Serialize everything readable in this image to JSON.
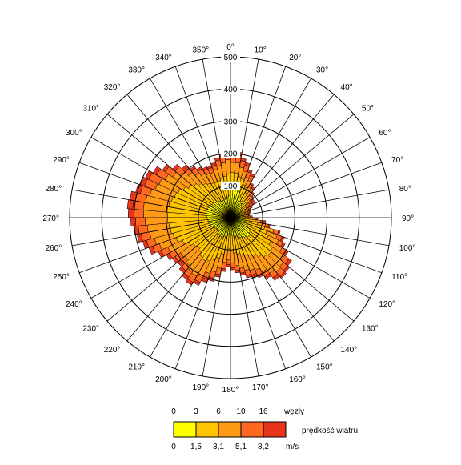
{
  "chart_data": {
    "type": "polar-stacked-bar",
    "title": "",
    "directions_deg": [
      0,
      10,
      20,
      30,
      40,
      50,
      60,
      70,
      80,
      90,
      100,
      110,
      120,
      130,
      140,
      150,
      160,
      170,
      180,
      190,
      200,
      210,
      220,
      230,
      240,
      250,
      260,
      270,
      280,
      290,
      300,
      310,
      320,
      330,
      340,
      350
    ],
    "direction_labels": [
      "0°",
      "10°",
      "20°",
      "30°",
      "40°",
      "50°",
      "60°",
      "70°",
      "80°",
      "90°",
      "100°",
      "110°",
      "120°",
      "130°",
      "140°",
      "150°",
      "160°",
      "170°",
      "180°",
      "190°",
      "200°",
      "210°",
      "220°",
      "230°",
      "240°",
      "250°",
      "260°",
      "270°",
      "280°",
      "290°",
      "300°",
      "310°",
      "320°",
      "330°",
      "340°",
      "350°"
    ],
    "radial_ticks": [
      100,
      200,
      300,
      400,
      500
    ],
    "radial_tick_labels": [
      "100",
      "200",
      "300",
      "400",
      "500"
    ],
    "rlim": [
      0,
      500
    ],
    "bin_width_deg": 5,
    "bins_start_deg": 0,
    "classes": [
      {
        "knots": "0",
        "ms": "0",
        "color": "#ffff00"
      },
      {
        "knots": "3",
        "ms": "1,5",
        "color": "#ffc400"
      },
      {
        "knots": "6",
        "ms": "3,1",
        "color": "#ff9a16"
      },
      {
        "knots": "10",
        "ms": "5,1",
        "color": "#ff6820"
      },
      {
        "knots": "16",
        "ms": "8,2",
        "color": "#e8341c"
      }
    ],
    "legend": {
      "knots_unit": "węzły",
      "title": "prędkość wiatru",
      "ms_unit": "m/s"
    },
    "cumulative_radii": [
      [
        95,
        140,
        172,
        195,
        205
      ],
      [
        95,
        140,
        172,
        195,
        205
      ],
      [
        90,
        130,
        160,
        180,
        188
      ],
      [
        85,
        125,
        150,
        170,
        178
      ],
      [
        75,
        110,
        135,
        152,
        160
      ],
      [
        70,
        105,
        128,
        145,
        152
      ],
      [
        60,
        90,
        110,
        120,
        125
      ],
      [
        55,
        85,
        100,
        112,
        118
      ],
      [
        50,
        75,
        90,
        100,
        105
      ],
      [
        45,
        65,
        80,
        90,
        96
      ],
      [
        40,
        60,
        72,
        82,
        90
      ],
      [
        40,
        58,
        70,
        80,
        88
      ],
      [
        35,
        52,
        62,
        70,
        75
      ],
      [
        32,
        48,
        58,
        65,
        70
      ],
      [
        30,
        45,
        55,
        62,
        66
      ],
      [
        30,
        44,
        52,
        58,
        62
      ],
      [
        28,
        42,
        50,
        56,
        60
      ],
      [
        28,
        45,
        55,
        62,
        68
      ],
      [
        30,
        55,
        70,
        80,
        85
      ],
      [
        38,
        80,
        95,
        105,
        110
      ],
      [
        40,
        85,
        110,
        120,
        125
      ],
      [
        50,
        110,
        140,
        155,
        160
      ],
      [
        55,
        120,
        155,
        170,
        178
      ],
      [
        60,
        130,
        165,
        180,
        188
      ],
      [
        70,
        145,
        185,
        200,
        208
      ],
      [
        75,
        160,
        205,
        222,
        232
      ],
      [
        80,
        165,
        215,
        232,
        240
      ],
      [
        80,
        160,
        220,
        238,
        245
      ],
      [
        75,
        150,
        210,
        228,
        238
      ],
      [
        70,
        140,
        195,
        212,
        220
      ],
      [
        68,
        130,
        180,
        198,
        206
      ],
      [
        62,
        125,
        175,
        190,
        198
      ],
      [
        60,
        120,
        170,
        186,
        194
      ],
      [
        58,
        115,
        160,
        175,
        182
      ],
      [
        55,
        110,
        150,
        165,
        172
      ],
      [
        52,
        100,
        140,
        155,
        162
      ],
      [
        50,
        95,
        130,
        145,
        152
      ],
      [
        50,
        100,
        140,
        160,
        168
      ],
      [
        55,
        115,
        160,
        180,
        188
      ],
      [
        60,
        130,
        175,
        195,
        205
      ],
      [
        62,
        140,
        185,
        205,
        215
      ],
      [
        65,
        150,
        200,
        222,
        232
      ],
      [
        65,
        155,
        210,
        232,
        242
      ],
      [
        62,
        150,
        205,
        225,
        235
      ],
      [
        58,
        140,
        195,
        215,
        225
      ],
      [
        55,
        135,
        185,
        205,
        215
      ],
      [
        55,
        140,
        190,
        210,
        220
      ],
      [
        58,
        150,
        200,
        220,
        230
      ],
      [
        60,
        165,
        215,
        238,
        248
      ],
      [
        65,
        180,
        235,
        258,
        270
      ],
      [
        68,
        185,
        245,
        270,
        282
      ],
      [
        70,
        190,
        255,
        282,
        295
      ],
      [
        70,
        192,
        260,
        288,
        302
      ],
      [
        72,
        195,
        265,
        295,
        310
      ],
      [
        74,
        195,
        270,
        300,
        318
      ],
      [
        76,
        198,
        272,
        305,
        322
      ],
      [
        78,
        195,
        268,
        300,
        318
      ],
      [
        78,
        190,
        260,
        290,
        305
      ],
      [
        76,
        185,
        250,
        285,
        298
      ],
      [
        75,
        180,
        245,
        280,
        292
      ],
      [
        72,
        170,
        235,
        265,
        278
      ],
      [
        70,
        160,
        220,
        248,
        258
      ],
      [
        68,
        150,
        200,
        225,
        235
      ],
      [
        65,
        140,
        185,
        205,
        215
      ],
      [
        62,
        132,
        170,
        188,
        196
      ],
      [
        60,
        125,
        160,
        176,
        183
      ],
      [
        58,
        120,
        152,
        168,
        175
      ],
      [
        58,
        118,
        150,
        166,
        172
      ],
      [
        60,
        120,
        155,
        170,
        178
      ],
      [
        62,
        125,
        165,
        182,
        190
      ],
      [
        65,
        130,
        172,
        192,
        200
      ],
      [
        68,
        135,
        180,
        200,
        210
      ]
    ]
  }
}
